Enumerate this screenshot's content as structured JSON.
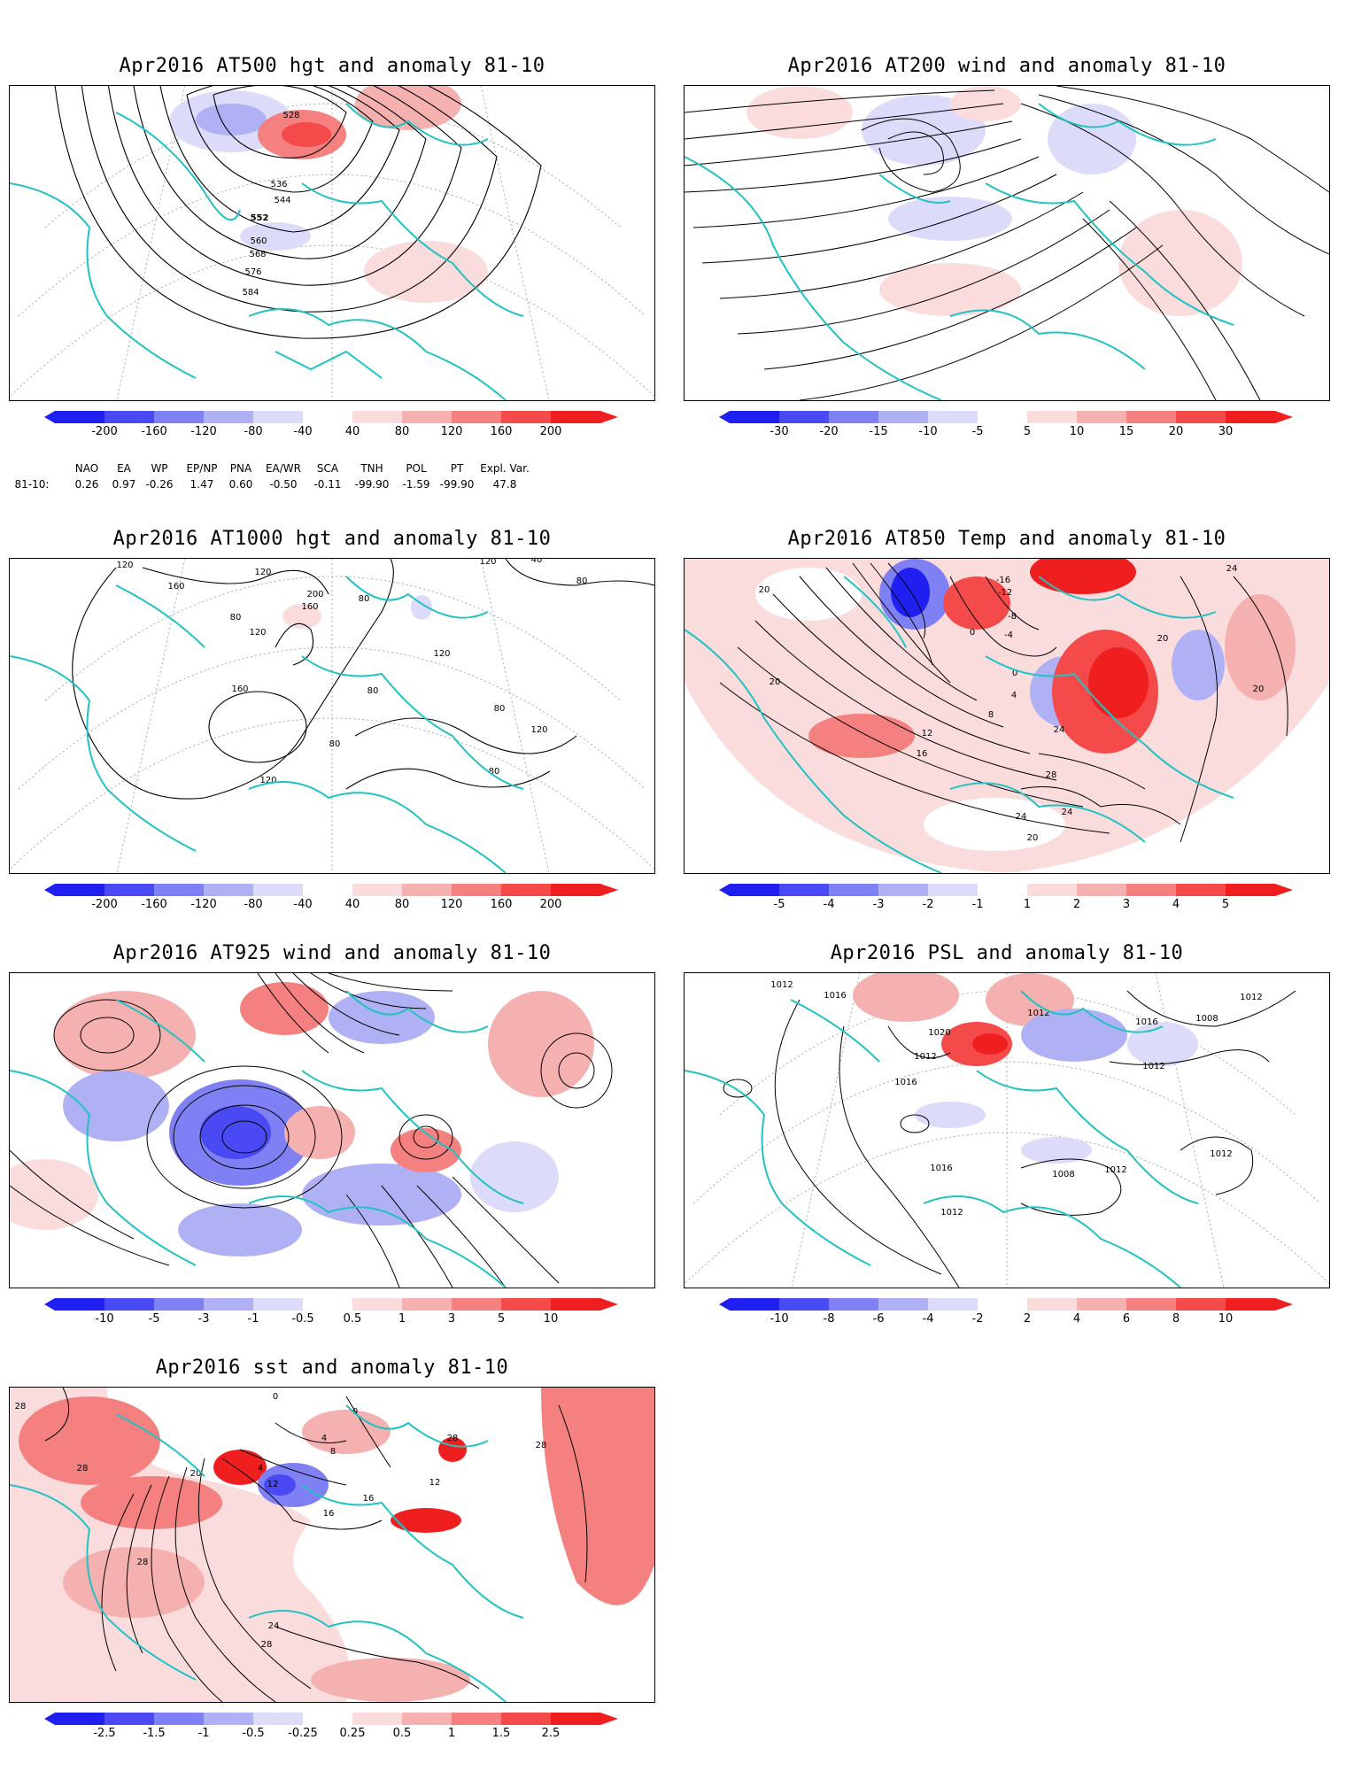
{
  "panels": [
    {
      "id": "p1",
      "title": "Apr2016 AT500 hgt and anomaly 81-10",
      "contour_labels": [
        "528",
        "536",
        "544",
        "552",
        "560",
        "568",
        "576",
        "584"
      ],
      "colorbar": [
        "-200",
        "-160",
        "-120",
        "-80",
        "-40",
        "40",
        "80",
        "120",
        "160",
        "200"
      ]
    },
    {
      "id": "p2",
      "title": "Apr2016 AT200 wind and anomaly 81-10",
      "contour_labels": [],
      "colorbar": [
        "-30",
        "-20",
        "-15",
        "-10",
        "-5",
        "5",
        "10",
        "15",
        "20",
        "30"
      ]
    },
    {
      "id": "p3",
      "title": "Apr2016 AT1000 hgt and anomaly 81-10",
      "contour_labels": [
        "120",
        "160",
        "120",
        "200",
        "160",
        "80",
        "120",
        "160",
        "120",
        "80",
        "120",
        "80",
        "80",
        "80",
        "120",
        "80",
        "40",
        "80",
        "120"
      ],
      "colorbar": [
        "-200",
        "-160",
        "-120",
        "-80",
        "-40",
        "40",
        "80",
        "120",
        "160",
        "200"
      ]
    },
    {
      "id": "p4",
      "title": "Apr2016 AT850 Temp and anomaly 81-10",
      "contour_labels": [
        "20",
        "-16",
        "-12",
        "-8",
        "0",
        "-4",
        "0",
        "4",
        "8",
        "12",
        "16",
        "24",
        "28",
        "24",
        "24",
        "20",
        "20",
        "20",
        "20",
        "24"
      ],
      "colorbar": [
        "-5",
        "-4",
        "-3",
        "-2",
        "-1",
        "1",
        "2",
        "3",
        "4",
        "5"
      ]
    },
    {
      "id": "p5",
      "title": "Apr2016 AT925 wind and anomaly 81-10",
      "contour_labels": [],
      "colorbar": [
        "-10",
        "-5",
        "-3",
        "-1",
        "-0.5",
        "0.5",
        "1",
        "3",
        "5",
        "10"
      ]
    },
    {
      "id": "p6",
      "title": "Apr2016 PSL and anomaly 81-10",
      "contour_labels": [
        "1012",
        "1016",
        "1020",
        "1012",
        "1016",
        "1012",
        "1016",
        "1008",
        "1012",
        "1012",
        "1016",
        "1012",
        "1008",
        "1012",
        "1012"
      ],
      "colorbar": [
        "-10",
        "-8",
        "-6",
        "-4",
        "-2",
        "2",
        "4",
        "6",
        "8",
        "10"
      ]
    },
    {
      "id": "p7",
      "title": "Apr2016 sst and anomaly 81-10",
      "contour_labels": [
        "28",
        "28",
        "20",
        "0",
        "4",
        "12",
        "4",
        "8",
        "0",
        "16",
        "28",
        "24",
        "28",
        "28",
        "16",
        "12",
        "28"
      ],
      "colorbar": [
        "-2.5",
        "-1.5",
        "-1",
        "-0.5",
        "-0.25",
        "0.25",
        "0.5",
        "1",
        "1.5",
        "2.5"
      ]
    }
  ],
  "teleconnection": {
    "headers": [
      "NAO",
      "EA",
      "WP",
      "EP/NP",
      "PNA",
      "EA/WR",
      "SCA",
      "TNH",
      "POL",
      "PT",
      "Expl. Var."
    ],
    "row_label": "81-10:",
    "values": [
      "0.26",
      "0.97",
      "-0.26",
      "1.47",
      "0.60",
      "-0.50",
      "-0.11",
      "-99.90",
      "-1.59",
      "-99.90",
      "47.8"
    ]
  },
  "colors": {
    "coast": "#22c2c2",
    "contour": "#000000",
    "grid": "#aaaaaa",
    "blue_scale": [
      "#1f1ff0",
      "#4a4af5",
      "#8080f5",
      "#b0b0f5",
      "#dcdcfa"
    ],
    "red_scale": [
      "#fadcdc",
      "#f5b0b0",
      "#f58080",
      "#f54a4a",
      "#f01f1f"
    ]
  }
}
